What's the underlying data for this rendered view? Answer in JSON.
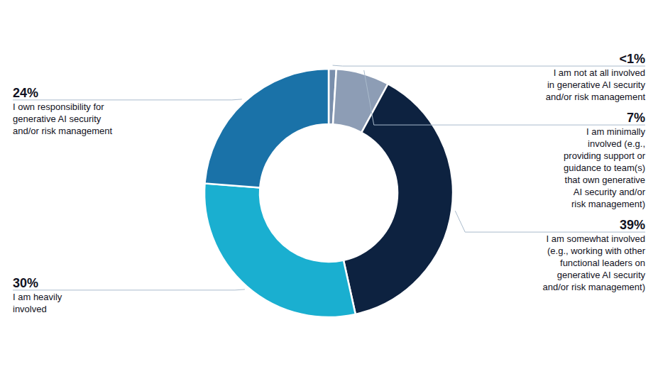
{
  "chart_data": {
    "type": "donut",
    "categories": [
      "I am not at all involved\nin generative AI security\nand/or risk management",
      "I am minimally\ninvolved (e.g.,\nproviding support or\nguidance to team(s)\nthat own generative\nAI security and/or\nrisk management)",
      "I am somewhat involved\n(e.g., working with other\nfunctional leaders on\ngenerative AI security\nand/or risk management)",
      "I am heavily\ninvolved",
      "I own responsibility for\ngenerative AI security\nand/or risk management"
    ],
    "values": [
      1,
      7,
      39,
      30,
      24
    ],
    "value_labels": [
      "<1%",
      "7%",
      "39%",
      "30%",
      "24%"
    ],
    "colors": [
      "#7a8fac",
      "#8d9db5",
      "#0d2240",
      "#1aafd0",
      "#1a72a8"
    ],
    "data_labels": true
  }
}
